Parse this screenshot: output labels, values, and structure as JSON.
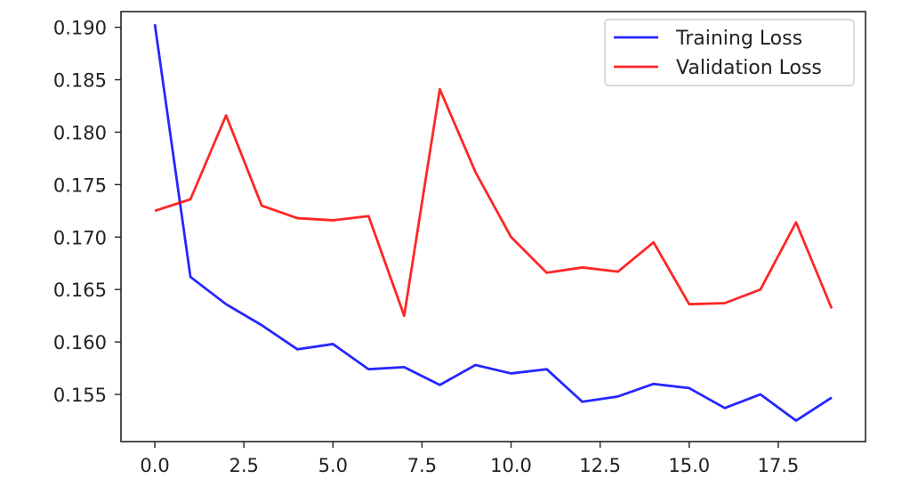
{
  "chart_data": {
    "type": "line",
    "title": "",
    "xlabel": "",
    "ylabel": "",
    "xlim": [
      -0.95,
      19.95
    ],
    "ylim": [
      0.1505,
      0.1915
    ],
    "x_ticks": [
      0,
      2.5,
      5,
      7.5,
      10,
      12.5,
      15,
      17.5
    ],
    "x_tick_labels": [
      "0.0",
      "2.5",
      "5.0",
      "7.5",
      "10.0",
      "12.5",
      "15.0",
      "17.5"
    ],
    "y_ticks": [
      0.155,
      0.16,
      0.165,
      0.17,
      0.175,
      0.18,
      0.185,
      0.19
    ],
    "y_tick_labels": [
      "0.155",
      "0.160",
      "0.165",
      "0.170",
      "0.175",
      "0.180",
      "0.185",
      "0.190"
    ],
    "grid": false,
    "legend_position": "top-right",
    "x": [
      0,
      1,
      2,
      3,
      4,
      5,
      6,
      7,
      8,
      9,
      10,
      11,
      12,
      13,
      14,
      15,
      16,
      17,
      18,
      19
    ],
    "series": [
      {
        "name": "Training Loss",
        "color": "#0000ff",
        "values": [
          0.1903,
          0.1662,
          0.1636,
          0.1616,
          0.1593,
          0.1598,
          0.1574,
          0.1576,
          0.1559,
          0.1578,
          0.157,
          0.1574,
          0.1543,
          0.1548,
          0.156,
          0.1556,
          0.1537,
          0.155,
          0.1525,
          0.1547
        ]
      },
      {
        "name": "Validation Loss",
        "color": "#ff0000",
        "values": [
          0.1725,
          0.1736,
          0.1816,
          0.173,
          0.1718,
          0.1716,
          0.172,
          0.1625,
          0.1841,
          0.1762,
          0.17,
          0.1666,
          0.1671,
          0.1667,
          0.1695,
          0.1636,
          0.1637,
          0.165,
          0.1714,
          0.1632
        ]
      }
    ]
  }
}
